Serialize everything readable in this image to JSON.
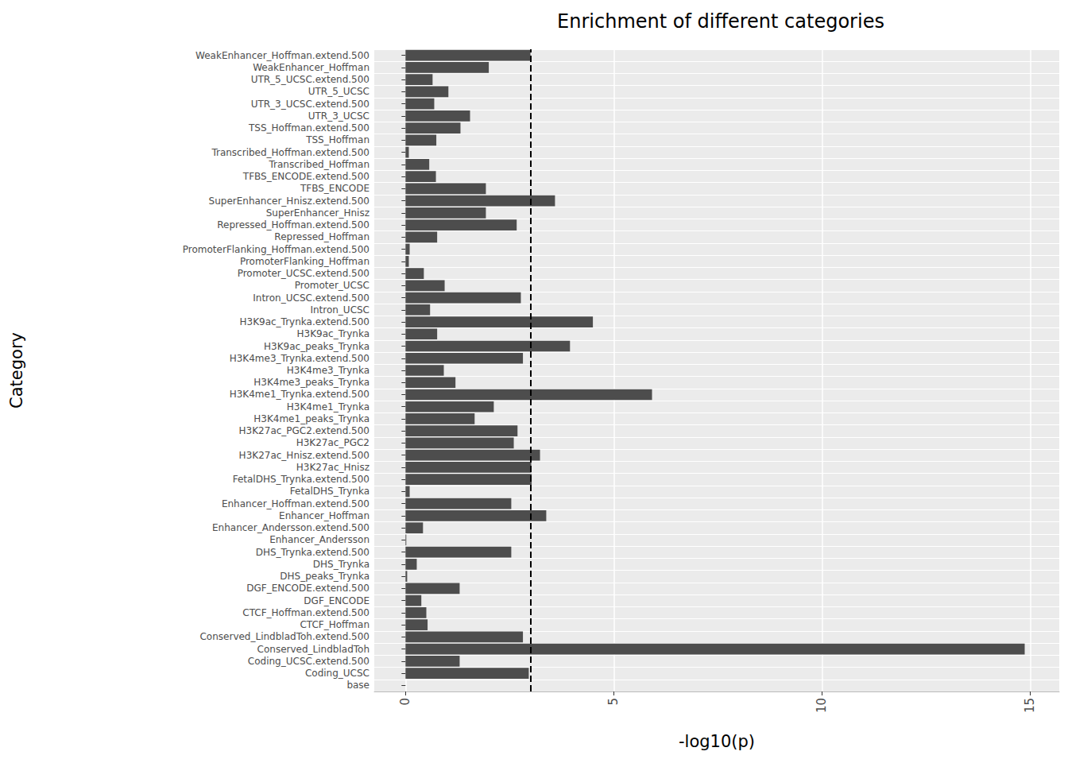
{
  "chart_data": {
    "type": "bar",
    "orientation": "horizontal",
    "title": "Enrichment of different categories",
    "xlabel": "-log10(p)",
    "ylabel": "Category",
    "categories": [
      "base",
      "Coding_UCSC",
      "Coding_UCSC.extend.500",
      "Conserved_LindbladToh",
      "Conserved_LindbladToh.extend.500",
      "CTCF_Hoffman",
      "CTCF_Hoffman.extend.500",
      "DGF_ENCODE",
      "DGF_ENCODE.extend.500",
      "DHS_peaks_Trynka",
      "DHS_Trynka",
      "DHS_Trynka.extend.500",
      "Enhancer_Andersson",
      "Enhancer_Andersson.extend.500",
      "Enhancer_Hoffman",
      "Enhancer_Hoffman.extend.500",
      "FetalDHS_Trynka",
      "FetalDHS_Trynka.extend.500",
      "H3K27ac_Hnisz",
      "H3K27ac_Hnisz.extend.500",
      "H3K27ac_PGC2",
      "H3K27ac_PGC2.extend.500",
      "H3K4me1_peaks_Trynka",
      "H3K4me1_Trynka",
      "H3K4me1_Trynka.extend.500",
      "H3K4me3_peaks_Trynka",
      "H3K4me3_Trynka",
      "H3K4me3_Trynka.extend.500",
      "H3K9ac_peaks_Trynka",
      "H3K9ac_Trynka",
      "H3K9ac_Trynka.extend.500",
      "Intron_UCSC",
      "Intron_UCSC.extend.500",
      "Promoter_UCSC",
      "Promoter_UCSC.extend.500",
      "PromoterFlanking_Hoffman",
      "PromoterFlanking_Hoffman.extend.500",
      "Repressed_Hoffman",
      "Repressed_Hoffman.extend.500",
      "SuperEnhancer_Hnisz",
      "SuperEnhancer_Hnisz.extend.500",
      "TFBS_ENCODE",
      "TFBS_ENCODE.extend.500",
      "Transcribed_Hoffman",
      "Transcribed_Hoffman.extend.500",
      "TSS_Hoffman",
      "TSS_Hoffman.extend.500",
      "UTR_3_UCSC",
      "UTR_3_UCSC.extend.500",
      "UTR_5_UCSC",
      "UTR_5_UCSC.extend.500",
      "WeakEnhancer_Hoffman",
      "WeakEnhancer_Hoffman.extend.500"
    ],
    "values": [
      0,
      2.96,
      1.3,
      14.87,
      2.82,
      0.53,
      0.5,
      0.38,
      1.3,
      0.04,
      0.27,
      2.54,
      0.02,
      0.42,
      3.38,
      2.54,
      0.1,
      3.03,
      3.02,
      3.23,
      2.6,
      2.69,
      1.66,
      2.12,
      5.92,
      1.2,
      0.92,
      2.82,
      3.95,
      0.76,
      4.5,
      0.59,
      2.77,
      0.94,
      0.44,
      0.08,
      0.1,
      0.76,
      2.67,
      1.93,
      3.59,
      1.93,
      0.73,
      0.57,
      0.08,
      0.74,
      1.32,
      1.55,
      0.69,
      1.03,
      0.65,
      2.0,
      3.0
    ],
    "color": "#4d4d4d",
    "reference_line": 3,
    "xlim": [
      -0.75,
      15.7
    ],
    "xticks": [
      0,
      5,
      10,
      15
    ],
    "grid": true
  }
}
